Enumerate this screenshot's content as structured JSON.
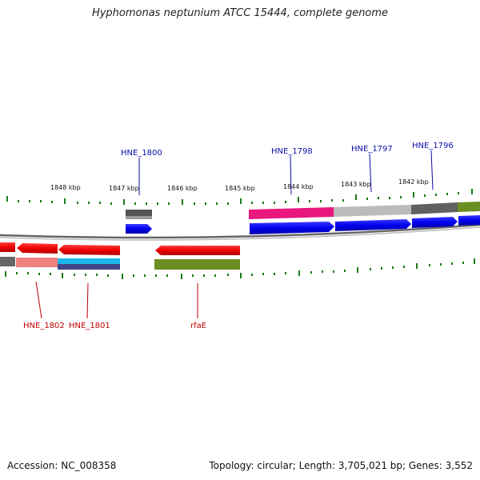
{
  "title": "Hyphomonas neptunium ATCC 15444, complete genome",
  "footer": {
    "accession": "Accession: NC_008358",
    "info": "Topology: circular; Length: 3,705,021 bp; Genes: 3,552"
  },
  "kbp_labels": [
    "1848 kbp",
    "1847 kbp",
    "1846 kbp",
    "1845 kbp",
    "1844 kbp",
    "1843 kbp",
    "1842 kbp"
  ],
  "gene_labels_top": [
    "HNE_1800",
    "HNE_1798",
    "HNE_1797",
    "HNE_1796"
  ],
  "gene_labels_bottom": [
    "HNE_1802",
    "HNE_1801",
    "rfaE"
  ],
  "colors": {
    "forward_cds": "#0000ee",
    "reverse_cds": "#ee0000",
    "backbone": "#888888",
    "ticks": "#1a7a1a",
    "magenta": "#e8187e",
    "olive": "#6b8e23",
    "cyan": "#1ab8e8",
    "label_top": "#0b0ba8",
    "label_bottom": "#c00000"
  }
}
